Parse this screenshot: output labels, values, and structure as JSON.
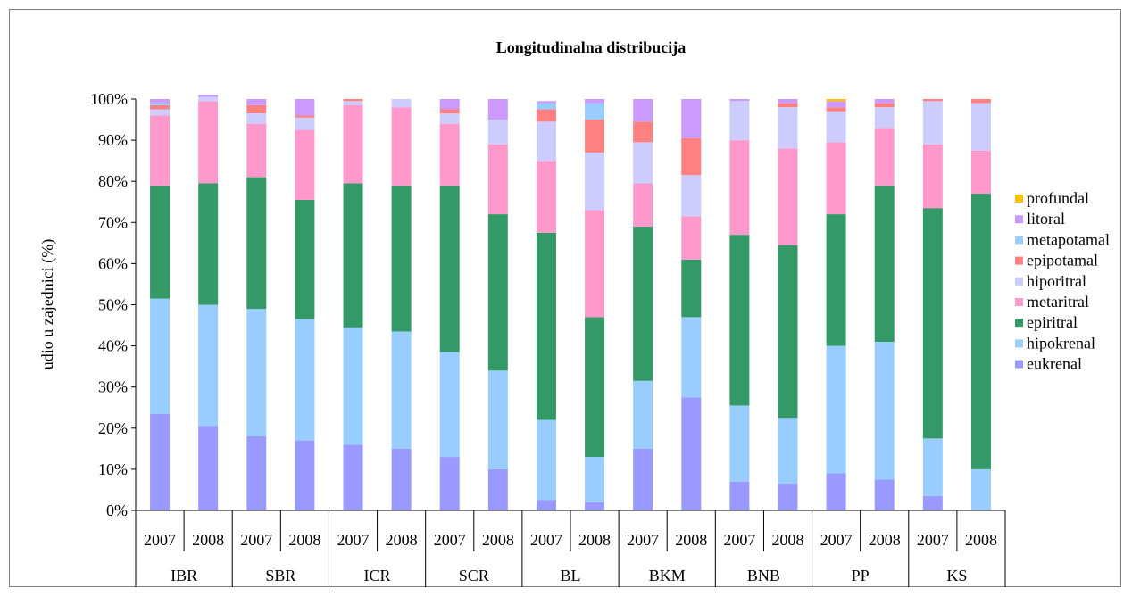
{
  "chart_data": {
    "type": "bar",
    "stacked": true,
    "percent": true,
    "title": "Longitudinalna distribucija",
    "ylabel": "udio u zajednici (%)",
    "ylim": [
      0,
      100
    ],
    "yticks": [
      "0%",
      "10%",
      "20%",
      "30%",
      "40%",
      "50%",
      "60%",
      "70%",
      "80%",
      "90%",
      "100%"
    ],
    "grid": false,
    "legend_position": "right",
    "groups": [
      "IBR",
      "SBR",
      "ICR",
      "SCR",
      "BL",
      "BKM",
      "BNB",
      "PP",
      "KS"
    ],
    "years": [
      "2007",
      "2008"
    ],
    "categories": [
      "IBR 2007",
      "IBR 2008",
      "SBR 2007",
      "SBR 2008",
      "ICR 2007",
      "ICR 2008",
      "SCR 2007",
      "SCR 2008",
      "BL 2007",
      "BL 2008",
      "BKM 2007",
      "BKM 2008",
      "BNB 2007",
      "BNB 2008",
      "PP 2007",
      "PP 2008",
      "KS 2007",
      "KS 2008"
    ],
    "series": [
      {
        "name": "eukrenal",
        "color": "#9999FF",
        "values": [
          23.5,
          20.5,
          18,
          17,
          16,
          15,
          13,
          10,
          2.5,
          2,
          15,
          27.5,
          7,
          6.5,
          9,
          7.5,
          3.5,
          0
        ]
      },
      {
        "name": "hipokrenal",
        "color": "#99CCFF",
        "values": [
          28,
          29.5,
          31,
          29.5,
          28.5,
          28.5,
          25.5,
          24,
          19.5,
          11,
          16.5,
          19.5,
          18.5,
          16,
          31,
          33.5,
          14,
          10
        ]
      },
      {
        "name": "epiritral",
        "color": "#339966",
        "values": [
          27.5,
          29.5,
          32,
          29,
          35,
          35.5,
          40.5,
          38,
          45.5,
          34,
          37.5,
          14,
          41.5,
          42,
          32,
          38,
          56,
          67
        ]
      },
      {
        "name": "metaritral",
        "color": "#FF99CC",
        "values": [
          17,
          20,
          13,
          17,
          19,
          19,
          15,
          17,
          17.5,
          26,
          10.5,
          10.5,
          23,
          23.5,
          17.5,
          14,
          15.5,
          10.5
        ]
      },
      {
        "name": "hiporitral",
        "color": "#CCCCFF",
        "values": [
          1.5,
          1,
          2.5,
          3,
          1,
          2,
          2.5,
          6,
          9.5,
          14,
          10,
          10,
          9.5,
          10,
          7.5,
          5,
          10.5,
          11.5
        ]
      },
      {
        "name": "epipotamal",
        "color": "#FF8080",
        "values": [
          1,
          0,
          2,
          0.5,
          0.5,
          0,
          1,
          0,
          3,
          8,
          5,
          9,
          0,
          1,
          1,
          1,
          0.5,
          1
        ]
      },
      {
        "name": "metapotamal",
        "color": "#99CCFF",
        "values": [
          0.5,
          0,
          0,
          0,
          0,
          0,
          0,
          0,
          1.5,
          4,
          0,
          0,
          0,
          0,
          0,
          0,
          0,
          0
        ]
      },
      {
        "name": "litoral",
        "color": "#CC99FF",
        "values": [
          1,
          0.5,
          1.5,
          4,
          0,
          0,
          2.5,
          5,
          0.5,
          1,
          5.5,
          9.5,
          0.5,
          1,
          1.5,
          1,
          0,
          0
        ]
      },
      {
        "name": "profundal",
        "color": "#FFC000",
        "values": [
          0,
          0,
          0,
          0,
          0,
          0,
          0,
          0,
          0,
          0,
          0,
          0,
          0,
          0,
          0.5,
          0,
          0,
          0
        ]
      }
    ]
  }
}
